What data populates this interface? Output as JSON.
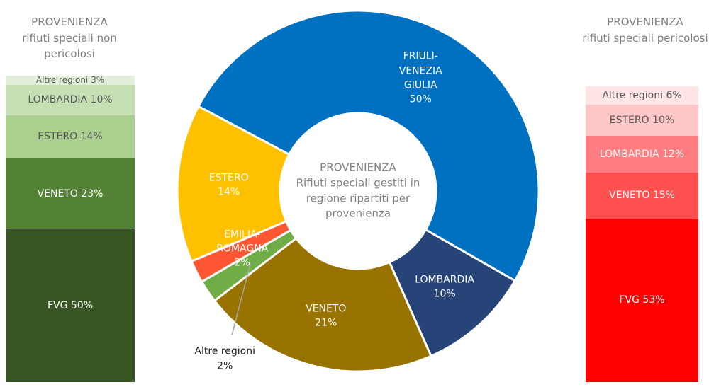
{
  "chart_data": [
    {
      "type": "stacked_bar",
      "title": "PROVENIENZA",
      "subtitle": "rifiuti speciali non pericolosi",
      "categories": [
        "FVG",
        "VENETO",
        "ESTERO",
        "LOMBARDIA",
        "Altre regioni"
      ],
      "values": [
        50,
        23,
        14,
        10,
        3
      ],
      "value_labels": [
        "50%",
        "23%",
        "14%",
        "10%",
        "3%"
      ],
      "colors": [
        "#375623",
        "#548235",
        "#a9d08e",
        "#c6e0b4",
        "#e2efda"
      ]
    },
    {
      "type": "donut",
      "title": "PROVENIENZA",
      "subtitle": "Rifiuti speciali gestiti in regione ripartiti per provenienza",
      "categories": [
        "FRIULI-VENEZIA GIULIA",
        "LOMBARDIA",
        "VENETO",
        "Altre regioni",
        "EMILIA-ROMAGNA",
        "ESTERO"
      ],
      "values": [
        50,
        10,
        21,
        2,
        2,
        14
      ],
      "value_labels": [
        "50%",
        "10%",
        "21%",
        "2%",
        "2%",
        "14%"
      ],
      "colors": [
        "#0070c0",
        "#264478",
        "#997300",
        "#70ad47",
        "#ff5733",
        "#ffc000"
      ]
    },
    {
      "type": "stacked_bar",
      "title": "PROVENIENZA",
      "subtitle": "rifiuti speciali pericolosi",
      "categories": [
        "FVG",
        "VENETO",
        "LOMBARDIA",
        "ESTERO",
        "Altre regioni"
      ],
      "values": [
        53,
        15,
        12,
        10,
        6
      ],
      "value_labels": [
        "53%",
        "15%",
        "12%",
        "10%",
        "6%"
      ],
      "colors": [
        "#ff0000",
        "#ff5050",
        "#ff7c80",
        "#ffc7c7",
        "#ffe5e5"
      ]
    }
  ]
}
